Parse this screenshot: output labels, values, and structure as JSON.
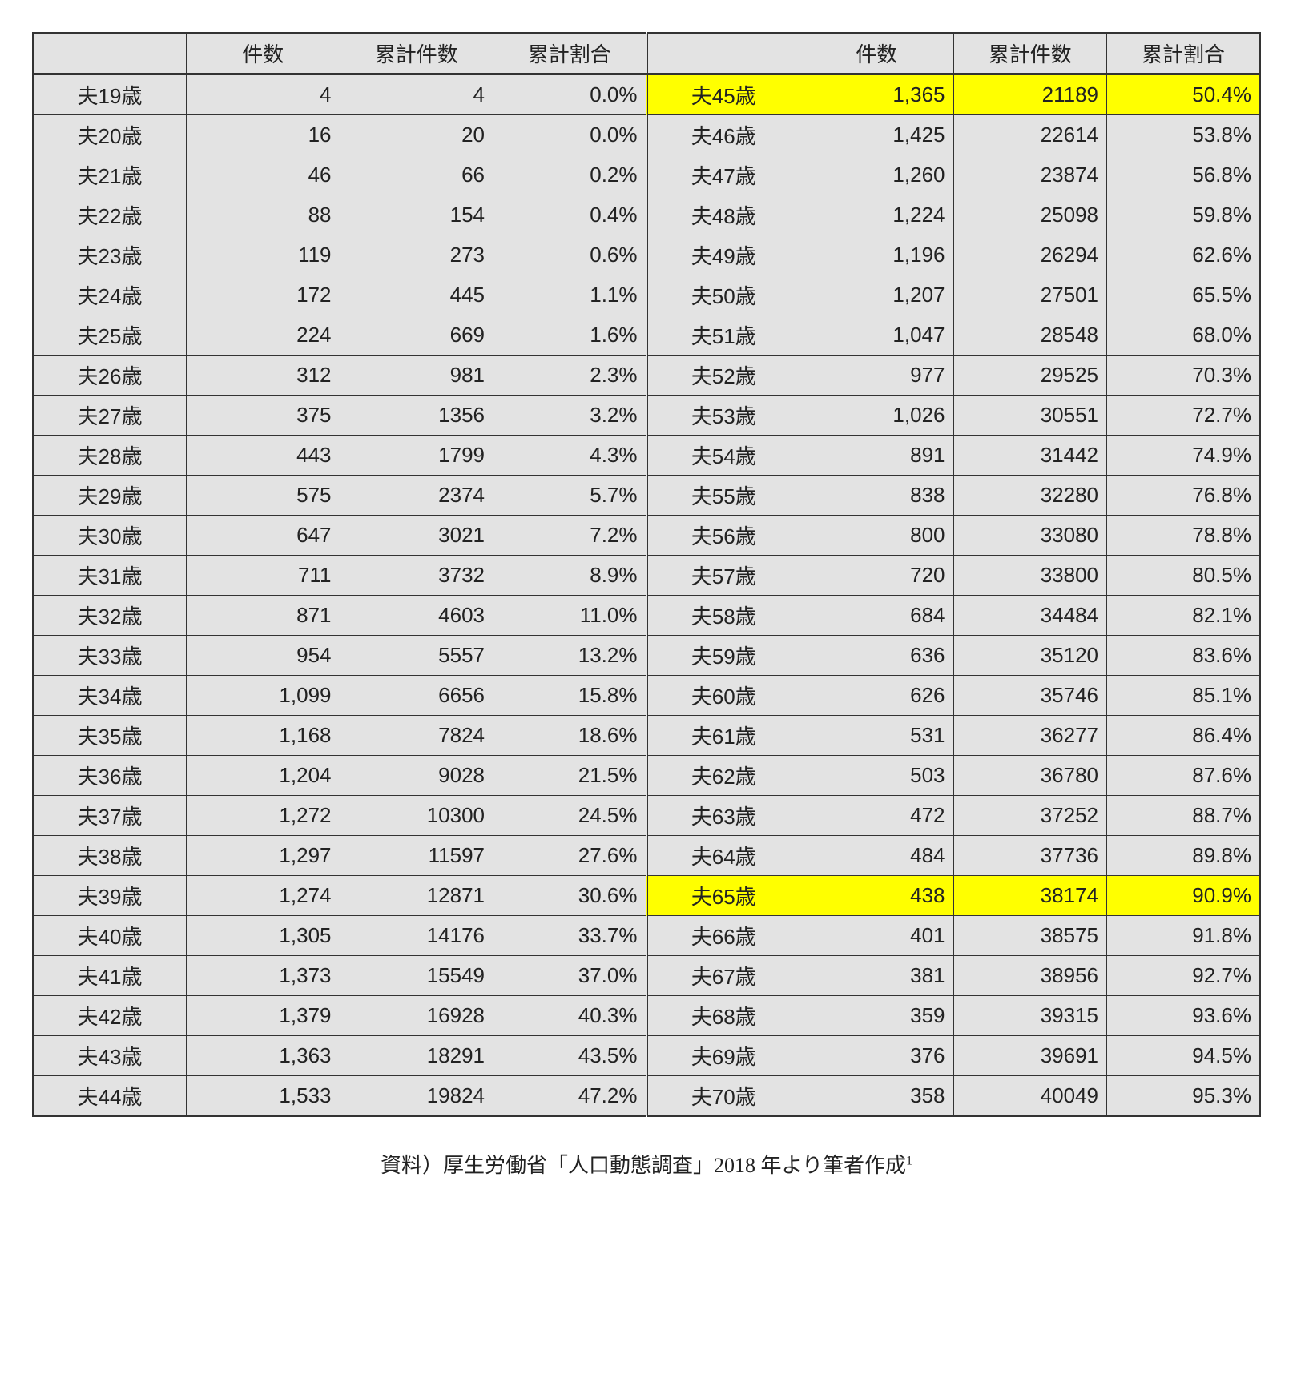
{
  "headers": {
    "blank": "",
    "count": "件数",
    "cum_count": "累計件数",
    "cum_ratio": "累計割合"
  },
  "caption": "資料）厚生労働省「人口動態調査」2018 年より筆者作成",
  "caption_sup": "1",
  "highlight_color": "#ffff00",
  "cell_bg": "#e3e3e3",
  "border_color": "#333333",
  "left": [
    {
      "age": "夫19歳",
      "count": "4",
      "cum": "4",
      "ratio": "0.0%"
    },
    {
      "age": "夫20歳",
      "count": "16",
      "cum": "20",
      "ratio": "0.0%"
    },
    {
      "age": "夫21歳",
      "count": "46",
      "cum": "66",
      "ratio": "0.2%"
    },
    {
      "age": "夫22歳",
      "count": "88",
      "cum": "154",
      "ratio": "0.4%"
    },
    {
      "age": "夫23歳",
      "count": "119",
      "cum": "273",
      "ratio": "0.6%"
    },
    {
      "age": "夫24歳",
      "count": "172",
      "cum": "445",
      "ratio": "1.1%"
    },
    {
      "age": "夫25歳",
      "count": "224",
      "cum": "669",
      "ratio": "1.6%"
    },
    {
      "age": "夫26歳",
      "count": "312",
      "cum": "981",
      "ratio": "2.3%"
    },
    {
      "age": "夫27歳",
      "count": "375",
      "cum": "1356",
      "ratio": "3.2%"
    },
    {
      "age": "夫28歳",
      "count": "443",
      "cum": "1799",
      "ratio": "4.3%"
    },
    {
      "age": "夫29歳",
      "count": "575",
      "cum": "2374",
      "ratio": "5.7%"
    },
    {
      "age": "夫30歳",
      "count": "647",
      "cum": "3021",
      "ratio": "7.2%"
    },
    {
      "age": "夫31歳",
      "count": "711",
      "cum": "3732",
      "ratio": "8.9%"
    },
    {
      "age": "夫32歳",
      "count": "871",
      "cum": "4603",
      "ratio": "11.0%"
    },
    {
      "age": "夫33歳",
      "count": "954",
      "cum": "5557",
      "ratio": "13.2%"
    },
    {
      "age": "夫34歳",
      "count": "1,099",
      "cum": "6656",
      "ratio": "15.8%"
    },
    {
      "age": "夫35歳",
      "count": "1,168",
      "cum": "7824",
      "ratio": "18.6%"
    },
    {
      "age": "夫36歳",
      "count": "1,204",
      "cum": "9028",
      "ratio": "21.5%"
    },
    {
      "age": "夫37歳",
      "count": "1,272",
      "cum": "10300",
      "ratio": "24.5%"
    },
    {
      "age": "夫38歳",
      "count": "1,297",
      "cum": "11597",
      "ratio": "27.6%"
    },
    {
      "age": "夫39歳",
      "count": "1,274",
      "cum": "12871",
      "ratio": "30.6%"
    },
    {
      "age": "夫40歳",
      "count": "1,305",
      "cum": "14176",
      "ratio": "33.7%"
    },
    {
      "age": "夫41歳",
      "count": "1,373",
      "cum": "15549",
      "ratio": "37.0%"
    },
    {
      "age": "夫42歳",
      "count": "1,379",
      "cum": "16928",
      "ratio": "40.3%"
    },
    {
      "age": "夫43歳",
      "count": "1,363",
      "cum": "18291",
      "ratio": "43.5%"
    },
    {
      "age": "夫44歳",
      "count": "1,533",
      "cum": "19824",
      "ratio": "47.2%"
    }
  ],
  "right": [
    {
      "age": "夫45歳",
      "count": "1,365",
      "cum": "21189",
      "ratio": "50.4%",
      "hl": true
    },
    {
      "age": "夫46歳",
      "count": "1,425",
      "cum": "22614",
      "ratio": "53.8%"
    },
    {
      "age": "夫47歳",
      "count": "1,260",
      "cum": "23874",
      "ratio": "56.8%"
    },
    {
      "age": "夫48歳",
      "count": "1,224",
      "cum": "25098",
      "ratio": "59.8%"
    },
    {
      "age": "夫49歳",
      "count": "1,196",
      "cum": "26294",
      "ratio": "62.6%"
    },
    {
      "age": "夫50歳",
      "count": "1,207",
      "cum": "27501",
      "ratio": "65.5%"
    },
    {
      "age": "夫51歳",
      "count": "1,047",
      "cum": "28548",
      "ratio": "68.0%"
    },
    {
      "age": "夫52歳",
      "count": "977",
      "cum": "29525",
      "ratio": "70.3%"
    },
    {
      "age": "夫53歳",
      "count": "1,026",
      "cum": "30551",
      "ratio": "72.7%"
    },
    {
      "age": "夫54歳",
      "count": "891",
      "cum": "31442",
      "ratio": "74.9%"
    },
    {
      "age": "夫55歳",
      "count": "838",
      "cum": "32280",
      "ratio": "76.8%"
    },
    {
      "age": "夫56歳",
      "count": "800",
      "cum": "33080",
      "ratio": "78.8%"
    },
    {
      "age": "夫57歳",
      "count": "720",
      "cum": "33800",
      "ratio": "80.5%"
    },
    {
      "age": "夫58歳",
      "count": "684",
      "cum": "34484",
      "ratio": "82.1%"
    },
    {
      "age": "夫59歳",
      "count": "636",
      "cum": "35120",
      "ratio": "83.6%"
    },
    {
      "age": "夫60歳",
      "count": "626",
      "cum": "35746",
      "ratio": "85.1%"
    },
    {
      "age": "夫61歳",
      "count": "531",
      "cum": "36277",
      "ratio": "86.4%"
    },
    {
      "age": "夫62歳",
      "count": "503",
      "cum": "36780",
      "ratio": "87.6%"
    },
    {
      "age": "夫63歳",
      "count": "472",
      "cum": "37252",
      "ratio": "88.7%"
    },
    {
      "age": "夫64歳",
      "count": "484",
      "cum": "37736",
      "ratio": "89.8%"
    },
    {
      "age": "夫65歳",
      "count": "438",
      "cum": "38174",
      "ratio": "90.9%",
      "hl": true
    },
    {
      "age": "夫66歳",
      "count": "401",
      "cum": "38575",
      "ratio": "91.8%"
    },
    {
      "age": "夫67歳",
      "count": "381",
      "cum": "38956",
      "ratio": "92.7%"
    },
    {
      "age": "夫68歳",
      "count": "359",
      "cum": "39315",
      "ratio": "93.6%"
    },
    {
      "age": "夫69歳",
      "count": "376",
      "cum": "39691",
      "ratio": "94.5%"
    },
    {
      "age": "夫70歳",
      "count": "358",
      "cum": "40049",
      "ratio": "95.3%"
    }
  ]
}
